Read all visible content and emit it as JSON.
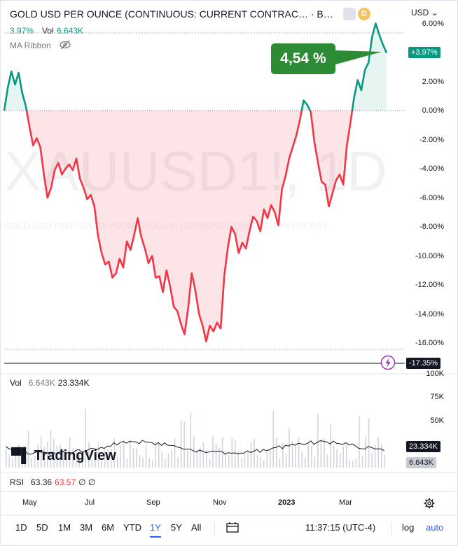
{
  "header": {
    "title": "GOLD USD PER OUNCE (CONTINUOUS: CURRENT CONTRAC… · B…",
    "badge_d": "D",
    "currency": "USD",
    "change": "3.97%",
    "vol_label": "Vol",
    "vol_value": "6.643K",
    "ma_ribbon": "MA Ribbon"
  },
  "watermark": {
    "symbol": "XAUUSD1!, 1D",
    "description": "GOLD USD PER OUNCE (CONTINUOUS: CURRENT CONTRACT IN FRONT)"
  },
  "callout": "4,54 %",
  "y_axis": {
    "labels": [
      "6.00%",
      "2.00%",
      "0.00%",
      "-2.00%",
      "-4.00%",
      "-6.00%",
      "-8.00%",
      "-10.00%",
      "-12.00%",
      "-14.00%",
      "-16.00%"
    ],
    "last_value": "+3.97%",
    "low_marker": "-17.35%"
  },
  "volume_pane": {
    "label": "Vol",
    "value1": "6.643K",
    "value2": "23.334K",
    "axis": [
      "100K",
      "75K",
      "50K"
    ],
    "ma_tag": "23.334K",
    "vol_tag": "6.643K"
  },
  "rsi_pane": {
    "label": "RSI",
    "value1": "63.36",
    "value2": "63.57",
    "value3": "∅ ∅"
  },
  "x_axis": [
    "May",
    "Jul",
    "Sep",
    "Nov",
    "2023",
    "Mar"
  ],
  "toolbar": {
    "timeframes": [
      "1D",
      "5D",
      "1M",
      "3M",
      "6M",
      "YTD",
      "1Y",
      "5Y",
      "All"
    ],
    "active": "1Y",
    "time": "11:37:15 (UTC-4)",
    "log": "log",
    "auto": "auto"
  },
  "logo": "TradingView",
  "colors": {
    "up": "#089981",
    "down": "#f23645",
    "accent": "#2962ff",
    "callout": "#2e8b35"
  },
  "chart_data": {
    "type": "line",
    "baseline": 0,
    "y_unit": "%",
    "ylim": [
      -17.35,
      6
    ],
    "x_range": [
      "2022-04-13",
      "2023-04-14"
    ],
    "series": [
      {
        "values": [
          0.0,
          1.6,
          2.7,
          1.8,
          2.6,
          1.2,
          0.3,
          -1.1,
          -2.4,
          -1.9,
          -2.5,
          -4.4,
          -6.0,
          -5.3,
          -4.1,
          -3.6,
          -4.4,
          -4.0,
          -3.7,
          -4.1,
          -3.3,
          -4.7,
          -5.3,
          -6.1,
          -5.8,
          -6.6,
          -8.6,
          -9.8,
          -10.6,
          -10.4,
          -11.5,
          -11.2,
          -10.2,
          -10.8,
          -9.0,
          -9.6,
          -8.6,
          -7.4,
          -8.7,
          -9.5,
          -10.5,
          -10.0,
          -11.5,
          -11.4,
          -12.5,
          -11.0,
          -12.1,
          -13.5,
          -13.8,
          -14.7,
          -15.4,
          -13.6,
          -11.2,
          -12.4,
          -14.0,
          -14.8,
          -15.9,
          -14.8,
          -15.2,
          -14.6,
          -15.0,
          -11.4,
          -9.4,
          -8.0,
          -8.5,
          -9.8,
          -9.1,
          -9.5,
          -8.3,
          -7.3,
          -7.6,
          -8.3,
          -6.8,
          -7.4,
          -6.5,
          -7.0,
          -7.9,
          -5.4,
          -4.5,
          -3.3,
          -2.5,
          -1.7,
          -0.6,
          0.7,
          0.4,
          -0.1,
          -2.2,
          -3.6,
          -4.9,
          -5.1,
          -6.6,
          -5.7,
          -4.8,
          -4.4,
          -5.1,
          -2.4,
          -0.8,
          0.9,
          2.1,
          1.4,
          2.8,
          3.3,
          5.1,
          6.0,
          5.2,
          4.54,
          3.97
        ]
      }
    ],
    "volume_axis": [
      "100K",
      "75K",
      "50K"
    ]
  }
}
